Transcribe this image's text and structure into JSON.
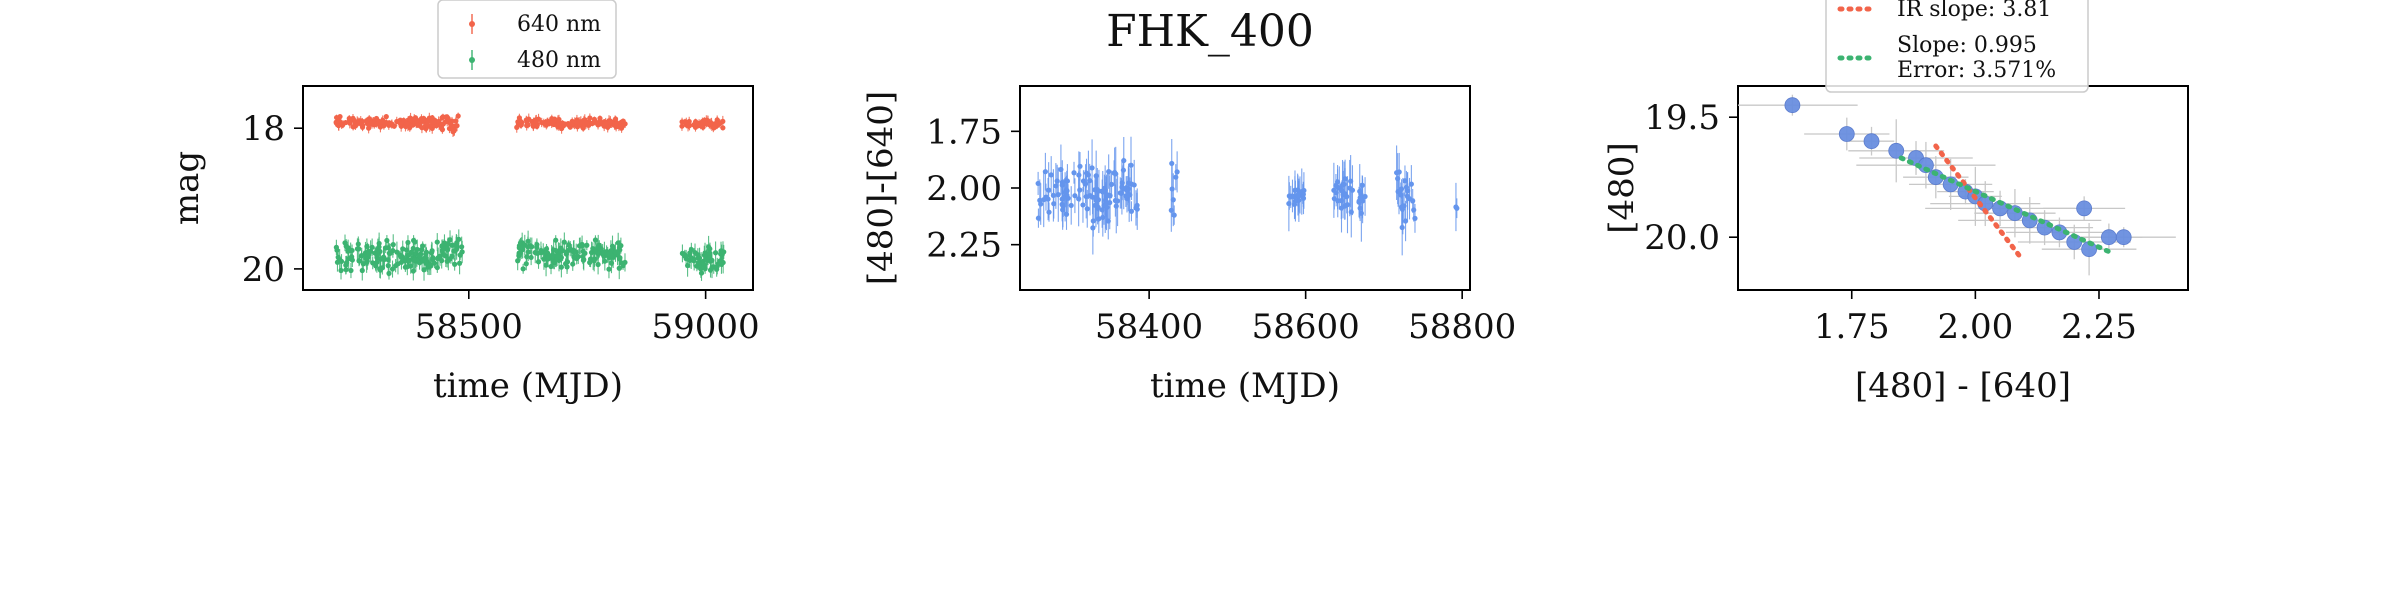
{
  "figure": {
    "title": "FHK_400"
  },
  "chart_data": [
    {
      "type": "scatter",
      "xlabel": "time (MJD)",
      "ylabel": "mag",
      "xlim": [
        58150,
        59100
      ],
      "ylim": [
        20.3,
        17.4
      ],
      "xticks": [
        58500,
        59000
      ],
      "xtick_labels": [
        "58500",
        "59000"
      ],
      "yticks": [
        18,
        20
      ],
      "ytick_labels": [
        "18",
        "20"
      ],
      "y_inverted": true,
      "legend": {
        "position": "top-center"
      },
      "series": [
        {
          "name": "640 nm",
          "color": "#f2644a",
          "segments": [
            [
              58220,
              58440,
              17.92,
              0.06
            ],
            [
              58440,
              58480,
              17.95,
              0.1
            ],
            [
              58600,
              58830,
              17.93,
              0.05
            ],
            [
              58950,
              59040,
              17.93,
              0.05
            ]
          ]
        },
        {
          "name": "480 nm",
          "color": "#3cb371",
          "segments": [
            [
              58220,
              58440,
              19.83,
              0.18
            ],
            [
              58440,
              58490,
              19.75,
              0.15
            ],
            [
              58600,
              58830,
              19.8,
              0.15
            ],
            [
              58950,
              59040,
              19.85,
              0.15
            ]
          ]
        }
      ]
    },
    {
      "type": "scatter",
      "xlabel": "time (MJD)",
      "ylabel": "[480]-[640]",
      "xlim": [
        58235,
        58810
      ],
      "ylim": [
        2.45,
        1.55
      ],
      "xticks": [
        58400,
        58600,
        58800
      ],
      "xtick_labels": [
        "58400",
        "58600",
        "58800"
      ],
      "yticks": [
        1.75,
        2.0,
        2.25
      ],
      "ytick_labels": [
        "1.75",
        "2.00",
        "2.25"
      ],
      "y_inverted": true,
      "series": [
        {
          "color": "#6495ed",
          "segments": [
            [
              58258,
              58385,
              2.03,
              0.1
            ],
            [
              58428,
              58436,
              2.0,
              0.13
            ],
            [
              58578,
              58600,
              2.03,
              0.03
            ],
            [
              58635,
              58660,
              2.02,
              0.08
            ],
            [
              58668,
              58680,
              2.03,
              0.05
            ],
            [
              58716,
              58740,
              2.02,
              0.1
            ],
            [
              58792,
              58794,
              2.08,
              0.02
            ]
          ]
        }
      ]
    },
    {
      "type": "scatter",
      "xlabel": "[480] - [640]",
      "ylabel": "[480]",
      "xlim": [
        1.52,
        2.43
      ],
      "ylim": [
        20.22,
        19.37
      ],
      "xticks": [
        1.75,
        2.0,
        2.25
      ],
      "xtick_labels": [
        "1.75",
        "2.00",
        "2.25"
      ],
      "yticks": [
        19.5,
        20.0
      ],
      "ytick_labels": [
        "19.5",
        "20.0"
      ],
      "y_inverted": true,
      "points": [
        [
          1.63,
          19.45
        ],
        [
          1.74,
          19.57
        ],
        [
          1.79,
          19.6
        ],
        [
          1.84,
          19.64
        ],
        [
          1.88,
          19.67
        ],
        [
          1.9,
          19.7
        ],
        [
          1.92,
          19.75
        ],
        [
          1.95,
          19.78
        ],
        [
          1.98,
          19.81
        ],
        [
          2.0,
          19.83
        ],
        [
          2.02,
          19.86
        ],
        [
          2.05,
          19.88
        ],
        [
          2.08,
          19.9
        ],
        [
          2.11,
          19.93
        ],
        [
          2.14,
          19.96
        ],
        [
          2.17,
          19.98
        ],
        [
          2.2,
          20.02
        ],
        [
          2.23,
          20.05
        ],
        [
          2.27,
          20.0
        ],
        [
          2.3,
          20.0
        ],
        [
          2.22,
          19.88
        ]
      ],
      "lines": [
        {
          "label": "IR slope: 3.81",
          "color": "#f2644a",
          "style": "dotted",
          "x": [
            1.92,
            2.09
          ],
          "y": [
            19.62,
            20.08
          ]
        },
        {
          "label": "Slope: 0.995\nError: 3.571%",
          "color": "#3cb371",
          "style": "dotted",
          "x": [
            1.85,
            2.27
          ],
          "y": [
            19.67,
            20.06
          ]
        }
      ],
      "legend": {
        "position": "top-center"
      }
    }
  ]
}
